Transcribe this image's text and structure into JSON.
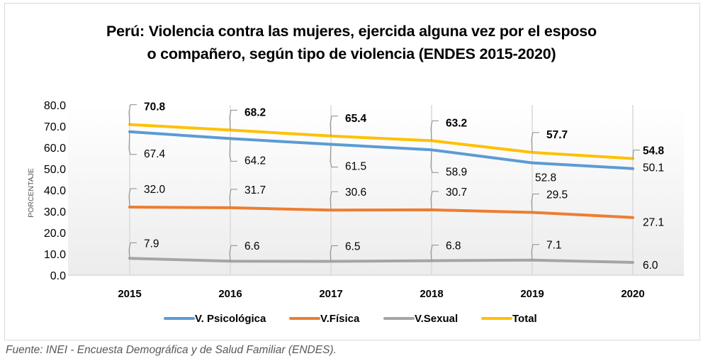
{
  "chart_data": {
    "type": "line",
    "title_lines": [
      "Perú: Violencia contra las mujeres, ejercida alguna vez por el esposo",
      "o compañero, según tipo de violencia (ENDES 2015-2020)"
    ],
    "xlabel": "",
    "ylabel": "PORCENTAJE",
    "ylim": [
      0,
      80
    ],
    "yticks": [
      "0.0",
      "10.0",
      "20.0",
      "30.0",
      "40.0",
      "50.0",
      "60.0",
      "70.0",
      "80.0"
    ],
    "categories": [
      "2015",
      "2016",
      "2017",
      "2018",
      "2019",
      "2020"
    ],
    "grid": "vertical",
    "legend_position": "bottom",
    "series": [
      {
        "name": "V. Psicológica",
        "color": "#5b9bd5",
        "values": [
          67.4,
          64.2,
          61.5,
          58.9,
          52.8,
          50.1
        ],
        "labels": [
          "67.4",
          "64.2",
          "61.5",
          "58.9",
          "52.8",
          "50.1"
        ],
        "label_bold": false
      },
      {
        "name": "V.Física",
        "color": "#ed7d31",
        "values": [
          32.0,
          31.7,
          30.6,
          30.7,
          29.5,
          27.1
        ],
        "labels": [
          "32.0",
          "31.7",
          "30.6",
          "30.7",
          "29.5",
          "27.1"
        ],
        "label_bold": false
      },
      {
        "name": "V.Sexual",
        "color": "#a5a5a5",
        "values": [
          7.9,
          6.6,
          6.5,
          6.8,
          7.1,
          6.0
        ],
        "labels": [
          "7.9",
          "6.6",
          "6.5",
          "6.8",
          "7.1",
          "6.0"
        ],
        "label_bold": false
      },
      {
        "name": "Total",
        "color": "#ffc000",
        "values": [
          70.8,
          68.2,
          65.4,
          63.2,
          57.7,
          54.8
        ],
        "labels": [
          "70.8",
          "68.2",
          "65.4",
          "63.2",
          "57.7",
          "54.8"
        ],
        "label_bold": true
      }
    ]
  },
  "footer": "Fuente: INEI - Encuesta Demográfica y de Salud Familiar (ENDES)."
}
